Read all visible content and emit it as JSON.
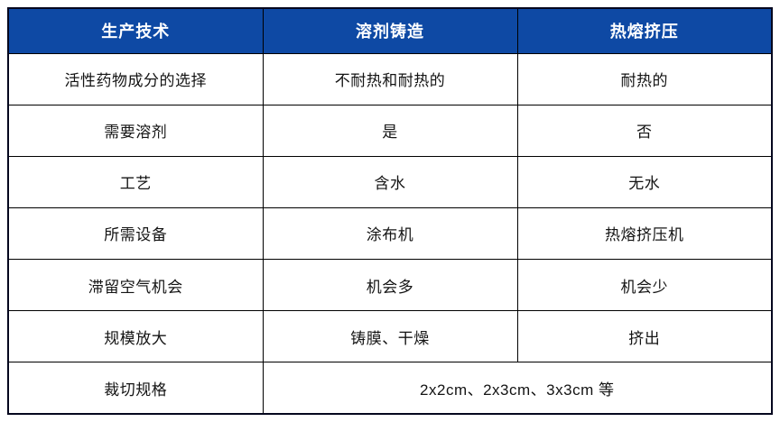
{
  "table": {
    "headers": [
      "生产技术",
      "溶剂铸造",
      "热熔挤压"
    ],
    "rows": [
      {
        "label": "活性药物成分的选择",
        "solvent": "不耐热和耐热的",
        "hotmelt": "耐热的"
      },
      {
        "label": "需要溶剂",
        "solvent": "是",
        "hotmelt": "否"
      },
      {
        "label": "工艺",
        "solvent": "含水",
        "hotmelt": "无水"
      },
      {
        "label": "所需设备",
        "solvent": "涂布机",
        "hotmelt": "热熔挤压机"
      },
      {
        "label": "滞留空气机会",
        "solvent": "机会多",
        "hotmelt": "机会少"
      },
      {
        "label": "规模放大",
        "solvent": "铸膜、干燥",
        "hotmelt": "挤出"
      },
      {
        "label": "裁切规格",
        "merged": "2x2cm、2x3cm、3x3cm 等"
      }
    ],
    "colors": {
      "header_bg": "#0E49A4",
      "header_text": "#FFFFFF",
      "body_text": "#141414",
      "border": "#000000"
    }
  }
}
